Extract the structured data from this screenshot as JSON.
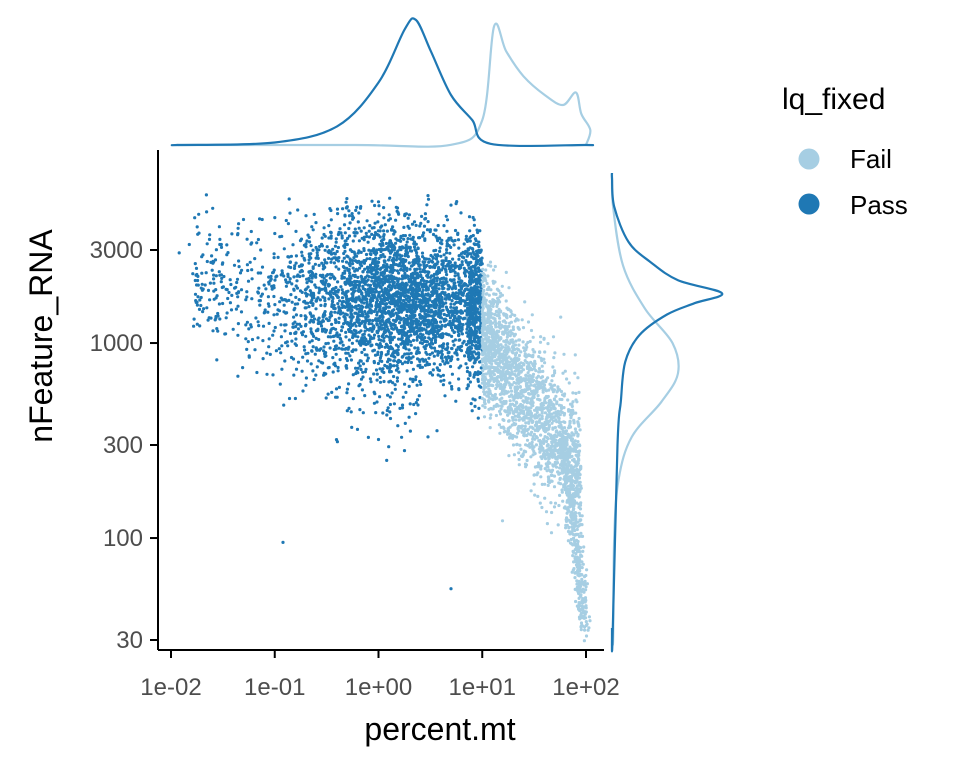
{
  "chart_data": {
    "type": "scatter",
    "subtype": "scatter with marginal density plots",
    "xlabel": "percent.mt",
    "ylabel": "nFeature_RNA",
    "x_scale": "log10",
    "y_scale": "log10",
    "xlim": [
      0.008,
      120
    ],
    "ylim": [
      28,
      7500
    ],
    "x_ticks": [
      {
        "value": 0.01,
        "label": "1e-02"
      },
      {
        "value": 0.1,
        "label": "1e-01"
      },
      {
        "value": 1,
        "label": "1e+00"
      },
      {
        "value": 10,
        "label": "1e+01"
      },
      {
        "value": 100,
        "label": "1e+02"
      }
    ],
    "y_ticks": [
      {
        "value": 30,
        "label": "30"
      },
      {
        "value": 100,
        "label": "100"
      },
      {
        "value": 300,
        "label": "300"
      },
      {
        "value": 1000,
        "label": "1000"
      },
      {
        "value": 3000,
        "label": "3000"
      }
    ],
    "grid": false,
    "legend": {
      "title": "lq_fixed",
      "position": "top-right",
      "entries": [
        {
          "label": "Fail",
          "color": "#a6cee3"
        },
        {
          "label": "Pass",
          "color": "#1f78b4"
        }
      ]
    },
    "series": [
      {
        "name": "Fail",
        "color": "#a6cee3",
        "cluster_center": {
          "percent_mt": 20,
          "nFeature_RNA": 800
        },
        "points": [
          [
            12,
            2600
          ],
          [
            15,
            1800
          ],
          [
            25,
            1200
          ],
          [
            40,
            900
          ],
          [
            60,
            700
          ],
          [
            75,
            500
          ],
          [
            80,
            350
          ],
          [
            85,
            250
          ],
          [
            90,
            180
          ],
          [
            92,
            130
          ],
          [
            95,
            90
          ],
          [
            98,
            60
          ],
          [
            100,
            45
          ],
          [
            97,
            35
          ],
          [
            30,
            400
          ],
          [
            50,
            260
          ],
          [
            20,
            300
          ],
          [
            40,
            160
          ],
          [
            70,
            150
          ],
          [
            78,
            700
          ]
        ],
        "marginal_density_x": [
          [
            0.6,
            0
          ],
          [
            5,
            0.002
          ],
          [
            10,
            0.2
          ],
          [
            13,
            0.95
          ],
          [
            17,
            0.75
          ],
          [
            25,
            0.55
          ],
          [
            40,
            0.4
          ],
          [
            60,
            0.32
          ],
          [
            80,
            0.42
          ],
          [
            90,
            0.25
          ],
          [
            110,
            0.12
          ]
        ],
        "marginal_density_y": [
          [
            30,
            0.01
          ],
          [
            100,
            0.02
          ],
          [
            200,
            0.06
          ],
          [
            330,
            0.18
          ],
          [
            500,
            0.45
          ],
          [
            700,
            0.6
          ],
          [
            1000,
            0.55
          ],
          [
            1500,
            0.3
          ],
          [
            2500,
            0.1
          ],
          [
            5000,
            0.01
          ]
        ]
      },
      {
        "name": "Pass",
        "color": "#1f78b4",
        "cluster_center": {
          "percent_mt": 2,
          "nFeature_RNA": 1700
        },
        "points": [
          [
            0.012,
            2900
          ],
          [
            0.015,
            3200
          ],
          [
            0.02,
            2000
          ],
          [
            0.05,
            4300
          ],
          [
            0.1,
            4400
          ],
          [
            0.2,
            4500
          ],
          [
            0.5,
            5000
          ],
          [
            1,
            5300
          ],
          [
            3,
            5700
          ],
          [
            5,
            5100
          ],
          [
            0.3,
            700
          ],
          [
            0.5,
            450
          ],
          [
            1,
            320
          ],
          [
            3,
            330
          ],
          [
            8,
            450
          ],
          [
            0.12,
            95
          ],
          [
            1.2,
            250
          ],
          [
            5,
            55
          ],
          [
            9,
            2600
          ],
          [
            9,
            700
          ]
        ],
        "marginal_density_x": [
          [
            0.012,
            0
          ],
          [
            0.1,
            0.02
          ],
          [
            0.4,
            0.15
          ],
          [
            1,
            0.5
          ],
          [
            1.8,
            0.93
          ],
          [
            2.3,
            1.0
          ],
          [
            3.2,
            0.75
          ],
          [
            5,
            0.4
          ],
          [
            8,
            0.2
          ],
          [
            12,
            0.01
          ],
          [
            100,
            0
          ]
        ],
        "marginal_density_y": [
          [
            30,
            0.005
          ],
          [
            300,
            0.05
          ],
          [
            500,
            0.08
          ],
          [
            800,
            0.12
          ],
          [
            1100,
            0.25
          ],
          [
            1400,
            0.5
          ],
          [
            1600,
            0.75
          ],
          [
            1800,
            1.0
          ],
          [
            2100,
            0.6
          ],
          [
            2600,
            0.35
          ],
          [
            3300,
            0.15
          ],
          [
            5000,
            0.02
          ],
          [
            7000,
            0
          ]
        ]
      }
    ]
  }
}
